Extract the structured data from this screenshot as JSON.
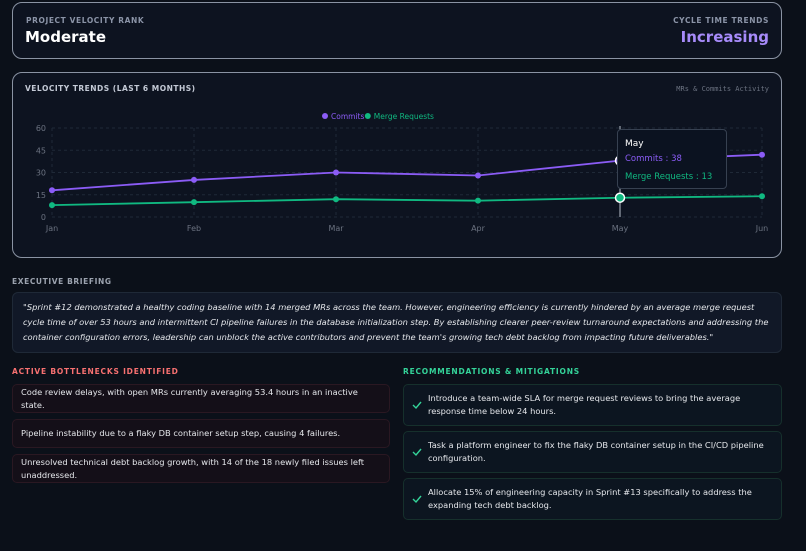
{
  "header": {
    "rank_label": "PROJECT VELOCITY RANK",
    "rank": "Moderate",
    "trend_label": "CYCLE TIME TRENDS",
    "trend": "Increasing"
  },
  "chart_data": {
    "type": "line",
    "title": "VELOCITY TRENDS (LAST 6 MONTHS)",
    "subtitle": "MRs & Commits Activity",
    "categories": [
      "Jan",
      "Feb",
      "Mar",
      "Apr",
      "May",
      "Jun"
    ],
    "series": [
      {
        "name": "Commits",
        "color": "#8b5cf6",
        "values": [
          18,
          25,
          30,
          28,
          38,
          42
        ]
      },
      {
        "name": "Merge Requests",
        "color": "#10b981",
        "values": [
          8,
          10,
          12,
          11,
          13,
          14
        ]
      }
    ],
    "ylim": [
      0,
      60
    ],
    "yticks": [
      0,
      15,
      30,
      45,
      60
    ],
    "grid": true,
    "legend": "top"
  },
  "briefing": {
    "label": "EXECUTIVE BRIEFING",
    "text": "\"Sprint #12 demonstrated a healthy coding baseline with 14 merged MRs across the team. However, engineering efficiency is currently hindered by an average merge request cycle time of over 53 hours and intermittent CI pipeline failures in the database initialization step. By establishing clearer peer-review turnaround expectations and addressing the container configuration errors, leadership can unblock the active contributors and prevent the team's growing tech debt backlog from impacting future deliverables.\""
  },
  "bottlenecks": {
    "title": "ACTIVE BOTTLENECKS IDENTIFIED",
    "items": [
      "Code review delays, with open MRs currently averaging 53.4 hours in an inactive state.",
      "Pipeline instability due to a flaky DB container setup step, causing 4 failures.",
      "Unresolved technical debt backlog growth, with 14 of the 18 newly filed issues left unaddressed."
    ]
  },
  "recommendations": {
    "title": "RECOMMENDATIONS & MITIGATIONS",
    "items": [
      "Introduce a team-wide SLA for merge request reviews to bring the average response time below 24 hours.",
      "Task a platform engineer to fix the flaky DB container setup in the CI/CD pipeline configuration.",
      "Allocate 15% of engineering capacity in Sprint #13 specifically to address the expanding tech debt backlog."
    ]
  }
}
